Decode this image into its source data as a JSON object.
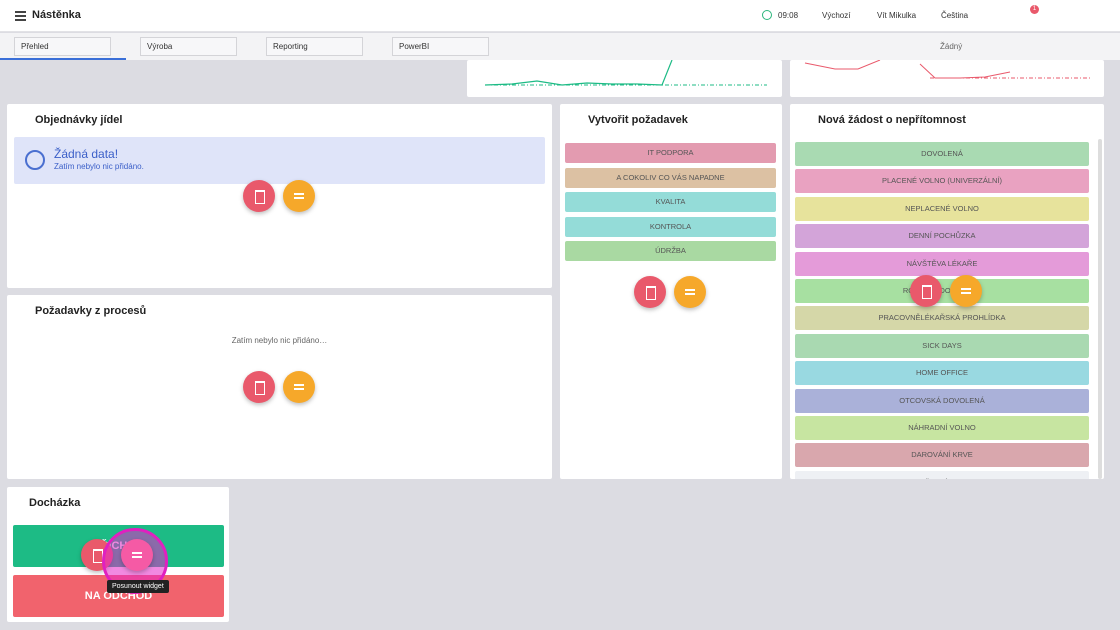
{
  "header": {
    "title": "Nástěnka",
    "time": "09:08",
    "profile": "Výchozí",
    "user": "Vít Mikulka",
    "language": "Čeština",
    "notifications": "1"
  },
  "tabs": [
    "Přehled",
    "Výroba",
    "Reporting",
    "PowerBI"
  ],
  "layout_select": "Žádný",
  "widgets": {
    "meals": {
      "title": "Objednávky jídel",
      "info_title": "Žádná data!",
      "info_text": "Zatím nebylo nic přidáno."
    },
    "process_requests": {
      "title": "Požadavky z procesů",
      "empty": "Zatím nebylo nic přidáno…"
    },
    "create_request": {
      "title": "Vytvořit požadavek",
      "items": [
        {
          "label": "IT PODPORA",
          "color": "#e39bb0"
        },
        {
          "label": "A COKOLIV CO VÁS NAPADNE",
          "color": "#dcc1a3"
        },
        {
          "label": "KVALITA",
          "color": "#94dcd8"
        },
        {
          "label": "KONTROLA",
          "color": "#94dcd8"
        },
        {
          "label": "ÚDRŽBA",
          "color": "#a9d9a2"
        }
      ]
    },
    "absence": {
      "title": "Nová žádost o nepřítomnost",
      "items": [
        {
          "label": "DOVOLENÁ",
          "color": "#a9dab2"
        },
        {
          "label": "PLACENÉ VOLNO (UNIVERZÁLNÍ)",
          "color": "#e9a2c1"
        },
        {
          "label": "NEPLACENÉ VOLNO",
          "color": "#e7e39c"
        },
        {
          "label": "DENNÍ POCHŮZKA",
          "color": "#d3a4d9"
        },
        {
          "label": "NÁVŠTĚVA LÉKAŘE",
          "color": "#e49bd9"
        },
        {
          "label": "RODINNÁ DOVOLENÁ",
          "color": "#a7e0a1"
        },
        {
          "label": "PRACOVNĚLÉKAŘSKÁ PROHLÍDKA",
          "color": "#d5d7a8"
        },
        {
          "label": "SICK DAYS",
          "color": "#a9d9b1"
        },
        {
          "label": "HOME OFFICE",
          "color": "#99d9e1"
        },
        {
          "label": "OTCOVSKÁ DOVOLENÁ",
          "color": "#aab1d9"
        },
        {
          "label": "NÁHRADNÍ VOLNO",
          "color": "#c7e5a1"
        },
        {
          "label": "DAROVÁNÍ KRVE",
          "color": "#d9a7ad"
        },
        {
          "label": "SLUŽEBNÍ CESTA",
          "color": "#eef0f4"
        }
      ]
    },
    "attendance": {
      "title": "Docházka",
      "arrival": "PŘÍCHOD",
      "departure": "NA ODCHOD",
      "tooltip": "Posunout widget"
    }
  }
}
